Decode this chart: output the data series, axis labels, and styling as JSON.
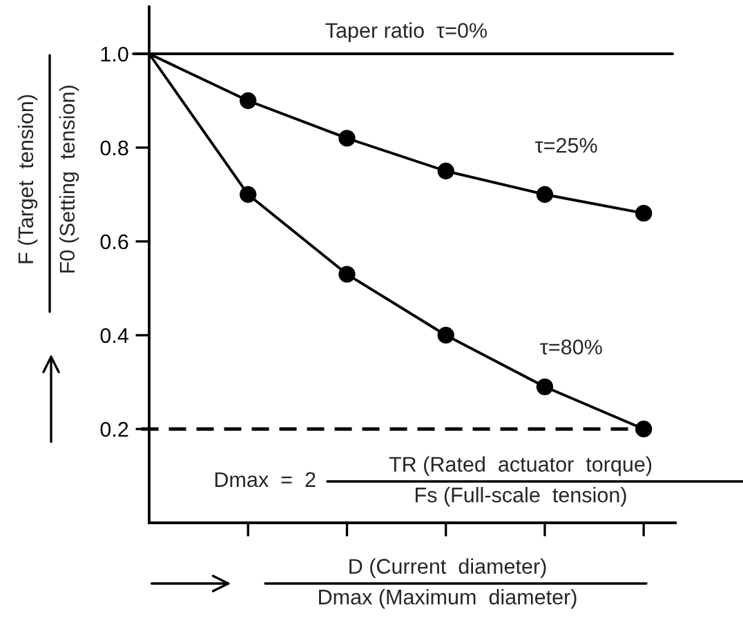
{
  "chart_data": {
    "type": "line",
    "ylabel": "F (Target  tension)",
    "xlabel": "D (Current  diameter)",
    "annotations": [
      "Taper ratio  τ=0%",
      "F0 (Setting  tension)",
      "Dmax (Maximum  diameter)",
      "Dmax  =  2",
      "TR (Rated  actuator  torque)",
      "Fs (Full-scale  tension)"
    ],
    "categories": [
      null,
      null,
      null,
      null,
      null,
      null
    ],
    "series": [
      {
        "name": "τ=25%",
        "color": "#000000",
        "values": [
          1.0,
          0.9,
          0.82,
          0.75,
          0.7,
          0.66
        ]
      },
      {
        "name": "τ=80%",
        "color": "#000000",
        "values": [
          1.0,
          0.7,
          0.53,
          0.4,
          0.29,
          0.2
        ]
      },
      {
        "type": "scatter",
        "color": "#000000",
        "values": [
          null,
          0.9,
          0.82,
          0.75,
          0.7,
          0.66
        ],
        "marker": "circle"
      },
      {
        "type": "scatter",
        "color": "#000000",
        "values": [
          null,
          0.7,
          0.53,
          0.4,
          0.29,
          0.2
        ],
        "marker": "circle"
      }
    ],
    "ref_lines": [
      {
        "axis": "y",
        "value": 1.0,
        "color": "#000000",
        "line_style": "solid"
      },
      {
        "axis": "y",
        "value": 0.2,
        "color": "#000000",
        "line_style": "dashed"
      }
    ],
    "ylim": [
      0,
      1.1
    ],
    "yticks": [
      {
        "value": 0.2,
        "label": "0.2"
      },
      {
        "value": 0.4,
        "label": "0.4"
      },
      {
        "value": 0.6,
        "label": "0.6"
      },
      {
        "value": 0.8,
        "label": "0.8"
      },
      {
        "value": 1.0,
        "label": "1.0"
      }
    ],
    "tick_labels": "y",
    "grid": false,
    "legend": false
  }
}
